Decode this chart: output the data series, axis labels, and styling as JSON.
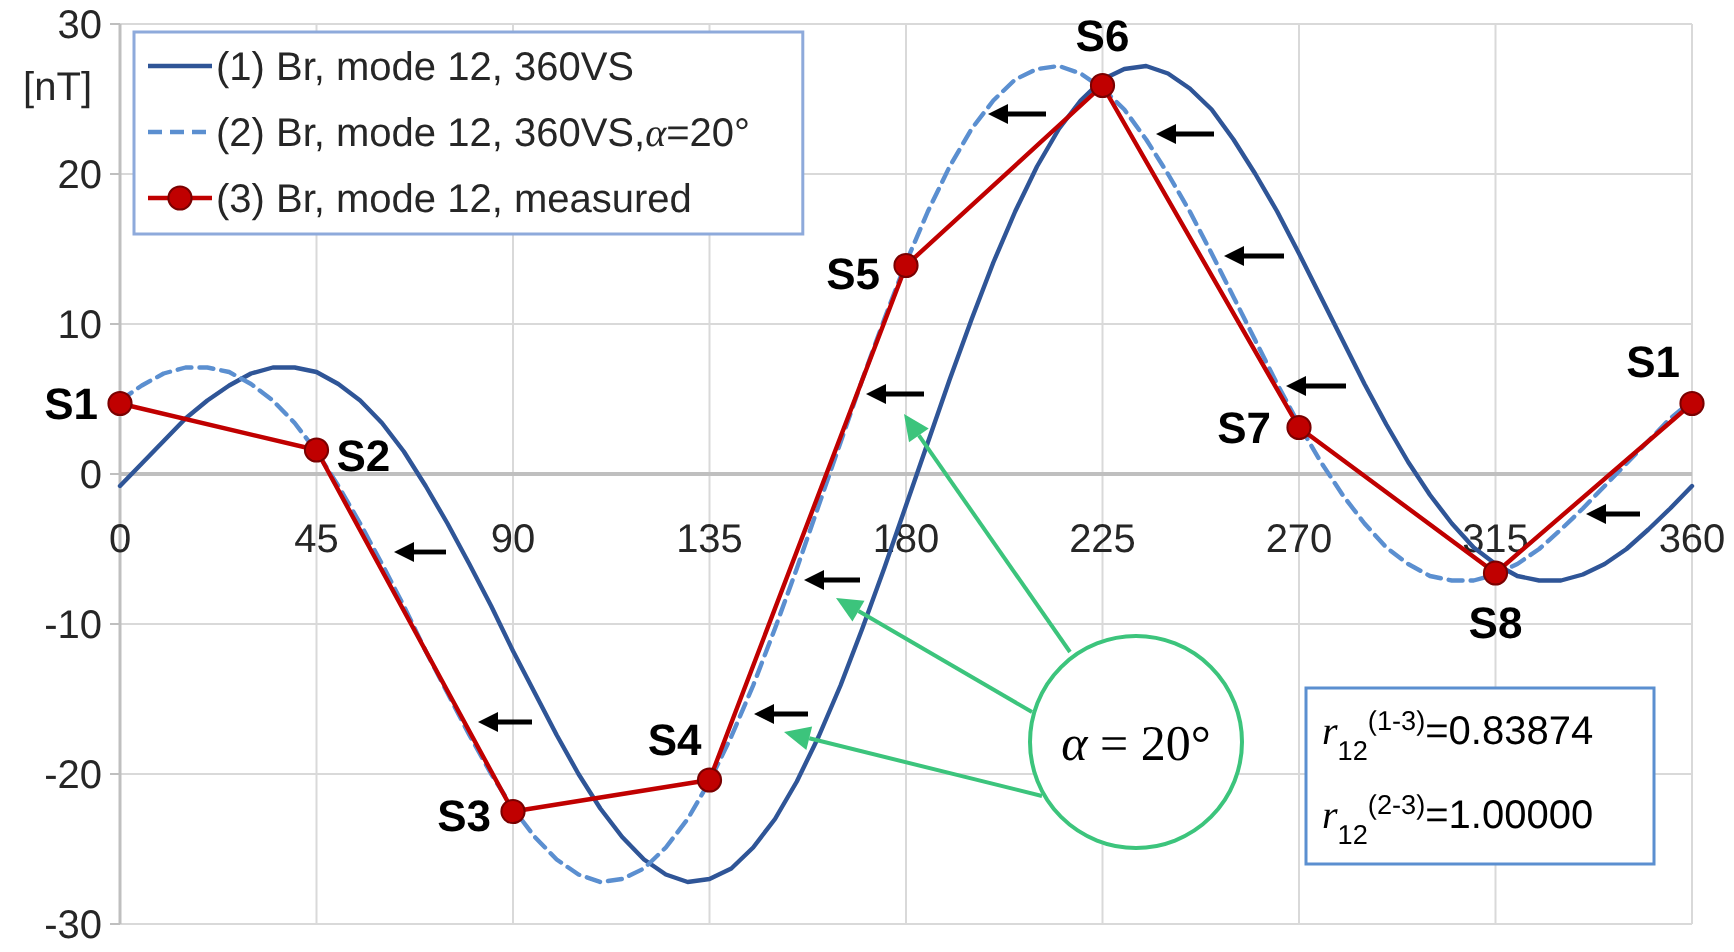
{
  "chart_data": {
    "type": "line",
    "ylabel": "[nT]",
    "xlim": [
      0,
      360
    ],
    "xticks": [
      0,
      45,
      90,
      135,
      180,
      225,
      270,
      315,
      360
    ],
    "ylim": [
      -30,
      30
    ],
    "yticks": [
      -30,
      -20,
      -10,
      0,
      10,
      20,
      30
    ],
    "grid": true,
    "legend": "top left",
    "series": [
      {
        "name": "(1) Br, mode 12, 360VS",
        "color": "#2f5597",
        "line_style": "solid",
        "x": [
          0,
          5,
          10,
          15,
          20,
          25,
          30,
          35,
          40,
          45,
          50,
          55,
          60,
          65,
          70,
          75,
          80,
          85,
          90,
          95,
          100,
          105,
          110,
          115,
          120,
          125,
          130,
          135,
          140,
          145,
          150,
          155,
          160,
          165,
          170,
          175,
          180,
          185,
          190,
          195,
          200,
          205,
          210,
          215,
          220,
          225,
          230,
          235,
          240,
          245,
          250,
          255,
          260,
          265,
          270,
          275,
          280,
          285,
          290,
          295,
          300,
          305,
          310,
          315,
          320,
          325,
          330,
          335,
          340,
          345,
          350,
          355,
          360
        ],
        "values": [
          -0.8,
          0.7,
          2.2,
          3.7,
          4.9,
          5.9,
          6.7,
          7.1,
          7.1,
          6.8,
          6.0,
          4.9,
          3.4,
          1.5,
          -0.8,
          -3.3,
          -6.0,
          -8.8,
          -11.8,
          -14.6,
          -17.4,
          -20.0,
          -22.3,
          -24.2,
          -25.7,
          -26.7,
          -27.2,
          -27.0,
          -26.3,
          -24.9,
          -23.0,
          -20.5,
          -17.5,
          -14.1,
          -10.3,
          -6.3,
          -2.1,
          2.1,
          6.3,
          10.3,
          14.1,
          17.5,
          20.5,
          23.0,
          24.9,
          26.3,
          27.0,
          27.2,
          26.7,
          25.7,
          24.3,
          22.3,
          20.0,
          17.5,
          14.7,
          11.8,
          8.9,
          6.0,
          3.3,
          0.8,
          -1.4,
          -3.3,
          -4.9,
          -6.0,
          -6.8,
          -7.1,
          -7.1,
          -6.7,
          -6.0,
          -5.0,
          -3.7,
          -2.3,
          -0.8
        ]
      },
      {
        "name": "(2) Br, mode 12, 360VS,α=20°",
        "color": "#5b8fd0",
        "line_style": "dashed",
        "x": [
          0,
          5,
          10,
          15,
          20,
          25,
          30,
          35,
          40,
          45,
          50,
          55,
          60,
          65,
          70,
          75,
          80,
          85,
          90,
          95,
          100,
          105,
          110,
          115,
          120,
          125,
          130,
          135,
          140,
          145,
          150,
          155,
          160,
          165,
          170,
          175,
          180,
          185,
          190,
          195,
          200,
          205,
          210,
          215,
          220,
          225,
          230,
          235,
          240,
          245,
          250,
          255,
          260,
          265,
          270,
          275,
          280,
          285,
          290,
          295,
          300,
          305,
          310,
          315,
          320,
          325,
          330,
          335,
          340,
          345,
          350,
          355,
          360
        ],
        "values": [
          4.9,
          5.9,
          6.7,
          7.1,
          7.1,
          6.8,
          6.0,
          4.9,
          3.4,
          1.5,
          -0.8,
          -3.3,
          -6.0,
          -8.8,
          -11.8,
          -14.6,
          -17.4,
          -20.0,
          -22.3,
          -24.2,
          -25.7,
          -26.7,
          -27.2,
          -27.0,
          -26.3,
          -24.9,
          -23.0,
          -20.5,
          -17.5,
          -14.1,
          -10.3,
          -6.3,
          -2.1,
          2.1,
          6.3,
          10.3,
          14.1,
          17.5,
          20.5,
          23.0,
          24.9,
          26.3,
          27.0,
          27.2,
          26.7,
          25.7,
          24.3,
          22.3,
          20.0,
          17.5,
          14.7,
          11.8,
          8.9,
          6.0,
          3.3,
          0.8,
          -1.4,
          -3.3,
          -4.9,
          -6.0,
          -6.8,
          -7.1,
          -7.1,
          -6.7,
          -6.0,
          -5.0,
          -3.7,
          -2.3,
          -0.8,
          0.7,
          2.2,
          3.7,
          4.9
        ]
      },
      {
        "name": "(3) Br, mode 12, measured",
        "color": "#c00000",
        "line_style": "solid",
        "marker": "circle",
        "x": [
          0,
          45,
          90,
          135,
          180,
          225,
          270,
          315,
          360
        ],
        "values": [
          4.7,
          1.6,
          -22.5,
          -20.4,
          13.9,
          25.9,
          3.1,
          -6.6,
          4.7
        ]
      }
    ],
    "annotations": [
      {
        "text": "S1",
        "x": 0,
        "y": 4.7
      },
      {
        "text": "S2",
        "x": 45,
        "y": 1.6
      },
      {
        "text": "S3",
        "x": 90,
        "y": -22.5
      },
      {
        "text": "S4",
        "x": 135,
        "y": -20.4
      },
      {
        "text": "S5",
        "x": 180,
        "y": 13.9
      },
      {
        "text": "S6",
        "x": 225,
        "y": 25.9
      },
      {
        "text": "S7",
        "x": 270,
        "y": 3.1
      },
      {
        "text": "S8",
        "x": 315,
        "y": -6.6
      },
      {
        "text": "S1",
        "x": 360,
        "y": 4.7
      },
      "α = 20°",
      "r$_{12}$$^{(1-3)}$=0.83874",
      "r$_{12}$$^{(2-3)}$=1.00000"
    ]
  }
}
